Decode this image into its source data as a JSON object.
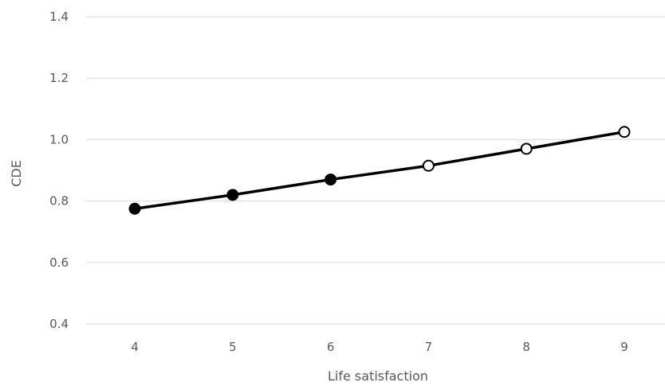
{
  "chart_data": {
    "type": "line",
    "title": "",
    "xlabel": "Life satisfaction",
    "ylabel": "CDE",
    "categories": [
      "4",
      "5",
      "6",
      "7",
      "8",
      "9"
    ],
    "series": [
      {
        "values": [
          0.775,
          0.82,
          0.87,
          0.915,
          0.97,
          1.025
        ],
        "marker_fill": [
          "#000000",
          "#000000",
          "#000000",
          "#ffffff",
          "#ffffff",
          "#ffffff"
        ],
        "color": "#000000"
      }
    ],
    "ylim": [
      0.4,
      1.4
    ],
    "yticks": [
      0.4,
      0.6,
      0.8,
      1.0,
      1.2,
      1.4
    ],
    "ytick_labels": [
      "0.4",
      "0.6",
      "0.8",
      "1.0",
      "1.2",
      "1.4"
    ],
    "grid": "horizontal",
    "legend": "none"
  }
}
